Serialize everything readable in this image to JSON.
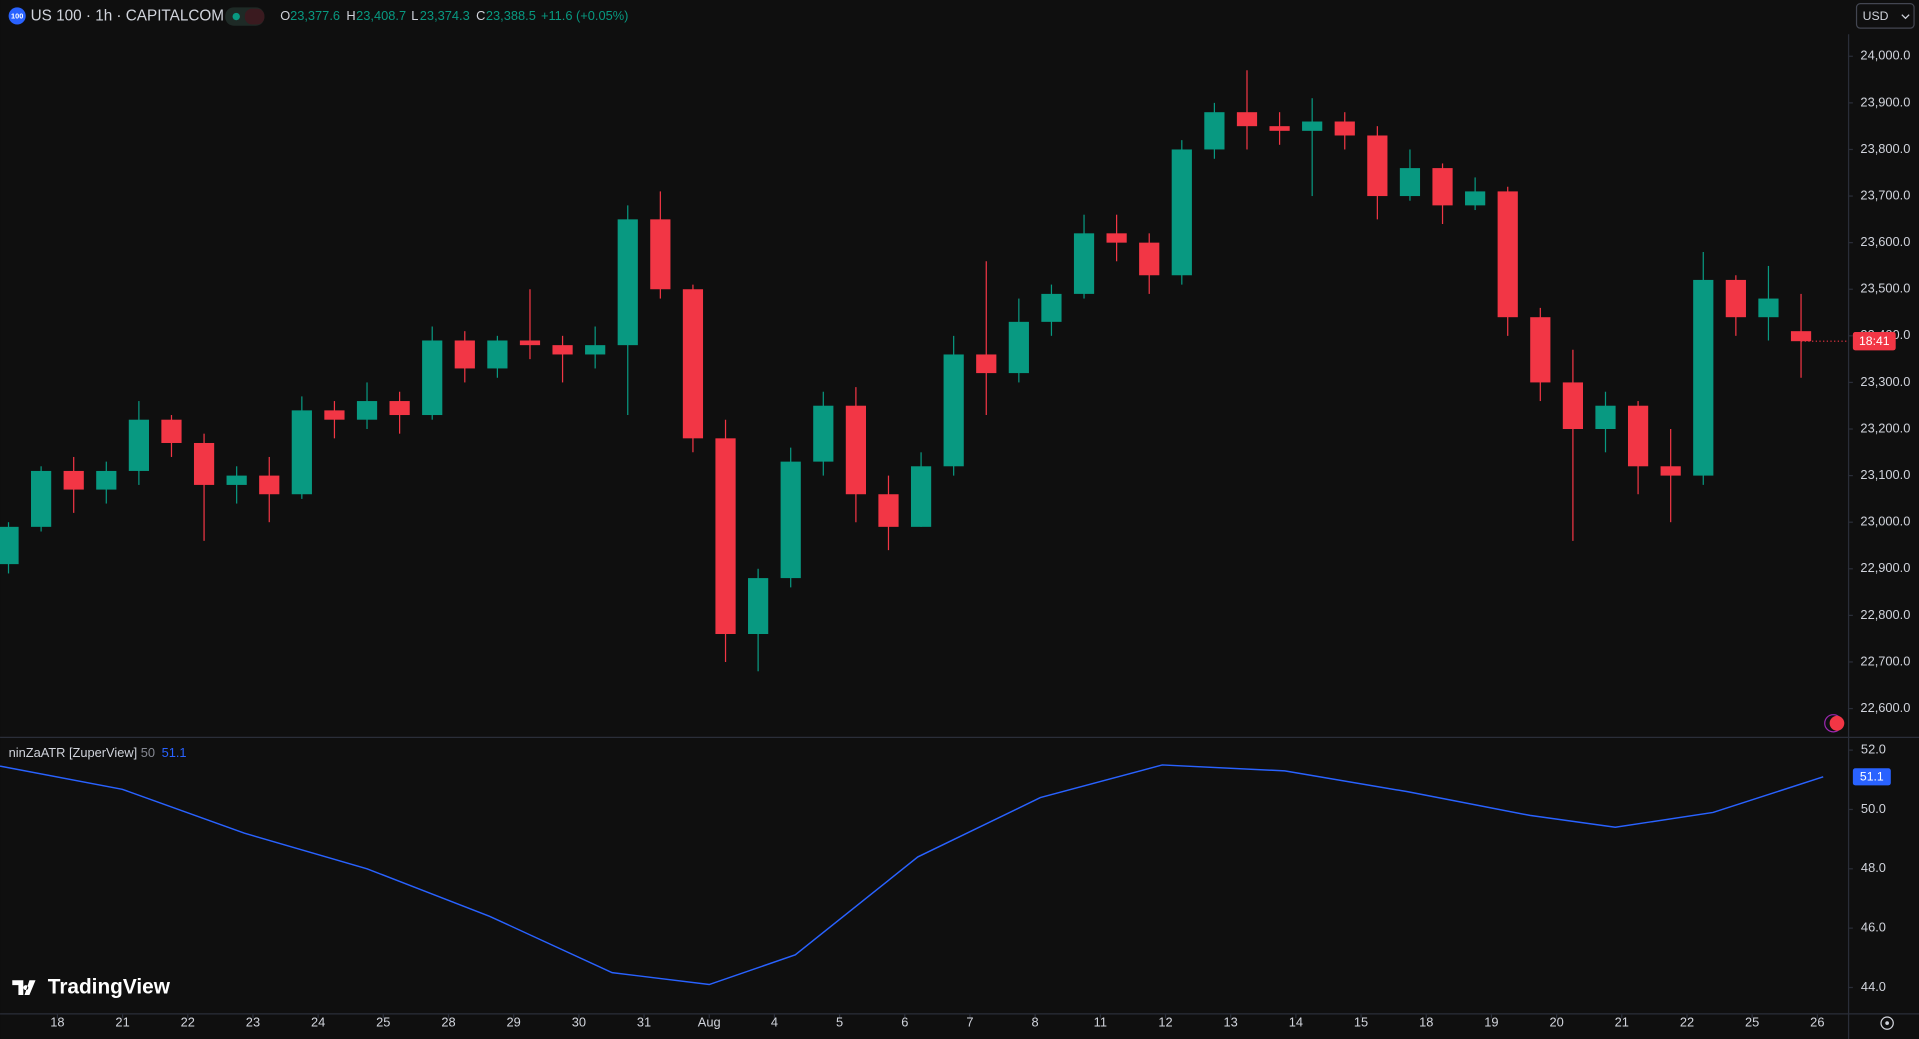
{
  "header": {
    "badge": "100",
    "symbol": "US 100 · 1h · CAPITALCOM",
    "open_label": "O",
    "open": "23,377.6",
    "high_label": "H",
    "high": "23,408.7",
    "low_label": "L",
    "low": "23,374.3",
    "close_label": "C",
    "close": "23,388.5",
    "change": "+11.6 (+0.05%)",
    "currency": "USD",
    "countdown": "18:41",
    "logo": "TradingView"
  },
  "chart_data": [
    {
      "type": "candlestick",
      "up_color": "#089981",
      "down_color": "#f23645",
      "x": [
        -0.75,
        -0.25,
        0.25,
        0.75,
        1.25,
        1.75,
        2.25,
        2.75,
        3.25,
        3.75,
        4.25,
        4.75,
        5.25,
        5.75,
        6.25,
        6.75,
        7.25,
        7.75,
        8.25,
        8.75,
        9.25,
        9.75,
        10.25,
        10.75,
        11.25,
        11.75,
        12.25,
        12.75,
        13.25,
        13.75,
        14.25,
        14.75,
        15.25,
        15.75,
        16.25,
        16.75,
        17.25,
        17.75,
        18.25,
        18.75,
        19.25,
        19.75,
        20.25,
        20.75,
        21.25,
        21.75,
        22.25,
        22.75,
        23.25,
        23.75,
        24.25,
        24.75,
        25.25,
        25.75,
        26.25,
        26.75
      ],
      "open": [
        22910,
        22990,
        23110,
        23070,
        23110,
        23220,
        23170,
        23080,
        23100,
        23060,
        23240,
        23220,
        23260,
        23230,
        23390,
        23330,
        23390,
        23380,
        23360,
        23380,
        23650,
        23500,
        23180,
        22760,
        22880,
        23130,
        23250,
        23060,
        22990,
        23120,
        23360,
        23320,
        23430,
        23490,
        23620,
        23600,
        23530,
        23800,
        23880,
        23850,
        23840,
        23860,
        23830,
        23700,
        23760,
        23680,
        23710,
        23440,
        23300,
        23200,
        23250,
        23120,
        23100,
        23520,
        23440,
        23410
      ],
      "high": [
        23000,
        23120,
        23140,
        23130,
        23260,
        23230,
        23190,
        23120,
        23140,
        23270,
        23260,
        23300,
        23280,
        23420,
        23410,
        23400,
        23500,
        23400,
        23420,
        23680,
        23710,
        23510,
        23220,
        22900,
        23160,
        23280,
        23290,
        23100,
        23150,
        23400,
        23560,
        23480,
        23510,
        23660,
        23660,
        23620,
        23820,
        23900,
        23970,
        23880,
        23910,
        23880,
        23850,
        23800,
        23770,
        23740,
        23720,
        23460,
        23370,
        23280,
        23260,
        23200,
        23580,
        23530,
        23550,
        23490
      ],
      "low": [
        22890,
        22980,
        23020,
        23040,
        23080,
        23140,
        22960,
        23040,
        23000,
        23050,
        23180,
        23200,
        23190,
        23220,
        23300,
        23310,
        23350,
        23300,
        23330,
        23230,
        23480,
        23150,
        22700,
        22680,
        22860,
        23100,
        23000,
        22940,
        22990,
        23100,
        23230,
        23300,
        23400,
        23480,
        23560,
        23490,
        23510,
        23780,
        23800,
        23810,
        23700,
        23800,
        23650,
        23690,
        23640,
        23670,
        23400,
        23260,
        22960,
        23150,
        23060,
        23000,
        23080,
        23400,
        23390,
        23310
      ],
      "close": [
        22990,
        23110,
        23070,
        23110,
        23220,
        23170,
        23080,
        23100,
        23060,
        23240,
        23220,
        23260,
        23230,
        23390,
        23330,
        23390,
        23380,
        23360,
        23380,
        23650,
        23500,
        23180,
        22760,
        22880,
        23130,
        23250,
        23060,
        22990,
        23120,
        23360,
        23320,
        23430,
        23490,
        23620,
        23600,
        23530,
        23800,
        23880,
        23850,
        23840,
        23860,
        23830,
        23700,
        23760,
        23680,
        23710,
        23440,
        23300,
        23200,
        23250,
        23120,
        23100,
        23520,
        23440,
        23480,
        23388.5
      ],
      "xlim": [
        -0.88,
        27.47
      ],
      "xticks": [
        {
          "value": 0,
          "label": "18"
        },
        {
          "value": 1,
          "label": "21"
        },
        {
          "value": 2,
          "label": "22"
        },
        {
          "value": 3,
          "label": "23"
        },
        {
          "value": 4,
          "label": "24"
        },
        {
          "value": 5,
          "label": "25"
        },
        {
          "value": 6,
          "label": "28"
        },
        {
          "value": 7,
          "label": "29"
        },
        {
          "value": 8,
          "label": "30"
        },
        {
          "value": 9,
          "label": "31"
        },
        {
          "value": 10,
          "label": "Aug"
        },
        {
          "value": 11,
          "label": "4"
        },
        {
          "value": 12,
          "label": "5"
        },
        {
          "value": 13,
          "label": "6"
        },
        {
          "value": 14,
          "label": "7"
        },
        {
          "value": 15,
          "label": "8"
        },
        {
          "value": 16,
          "label": "11"
        },
        {
          "value": 17,
          "label": "12"
        },
        {
          "value": 18,
          "label": "13"
        },
        {
          "value": 19,
          "label": "14"
        },
        {
          "value": 20,
          "label": "15"
        },
        {
          "value": 21,
          "label": "18"
        },
        {
          "value": 22,
          "label": "19"
        },
        {
          "value": 23,
          "label": "20"
        },
        {
          "value": 24,
          "label": "21"
        },
        {
          "value": 25,
          "label": "22"
        },
        {
          "value": 26,
          "label": "25"
        },
        {
          "value": 27,
          "label": "26"
        }
      ],
      "ylim": [
        22544.8,
        24120.8
      ],
      "yticks": [
        {
          "value": 24000,
          "label": "24,000.0"
        },
        {
          "value": 23900,
          "label": "23,900.0"
        },
        {
          "value": 23800,
          "label": "23,800.0"
        },
        {
          "value": 23700,
          "label": "23,700.0"
        },
        {
          "value": 23600,
          "label": "23,600.0"
        },
        {
          "value": 23500,
          "label": "23,500.0"
        },
        {
          "value": 23400,
          "label": "23,400.0"
        },
        {
          "value": 23300,
          "label": "23,300.0"
        },
        {
          "value": 23200,
          "label": "23,200.0"
        },
        {
          "value": 23100,
          "label": "23,100.0"
        },
        {
          "value": 23000,
          "label": "23,000.0"
        },
        {
          "value": 22900,
          "label": "22,900.0"
        },
        {
          "value": 22800,
          "label": "22,800.0"
        },
        {
          "value": 22700,
          "label": "22,700.0"
        },
        {
          "value": 22600,
          "label": "22,600.0"
        }
      ],
      "grid": false
    },
    {
      "type": "line",
      "title": "ninZaATR [ZuperView]",
      "period": 50,
      "last_value": 51.1,
      "color": "#2962ff",
      "x": [
        -0.88,
        0.995,
        2.87,
        4.75,
        6.63,
        8.51,
        10.0,
        11.32,
        13.2,
        15.08,
        16.95,
        18.83,
        20.71,
        22.59,
        23.9,
        25.4,
        27.09
      ],
      "values": [
        51.46,
        50.68,
        49.2,
        48.0,
        46.4,
        44.5,
        44.1,
        45.1,
        48.4,
        50.4,
        51.5,
        51.3,
        50.6,
        49.8,
        49.4,
        49.9,
        51.1
      ],
      "xlim": [
        -0.88,
        27.47
      ],
      "ylim": [
        43.13,
        52.41
      ],
      "yticks": [
        {
          "value": 52,
          "label": "52.0"
        },
        {
          "value": 50,
          "label": "50.0"
        },
        {
          "value": 48,
          "label": "48.0"
        },
        {
          "value": 46,
          "label": "46.0"
        },
        {
          "value": 44,
          "label": "44.0"
        }
      ]
    }
  ]
}
